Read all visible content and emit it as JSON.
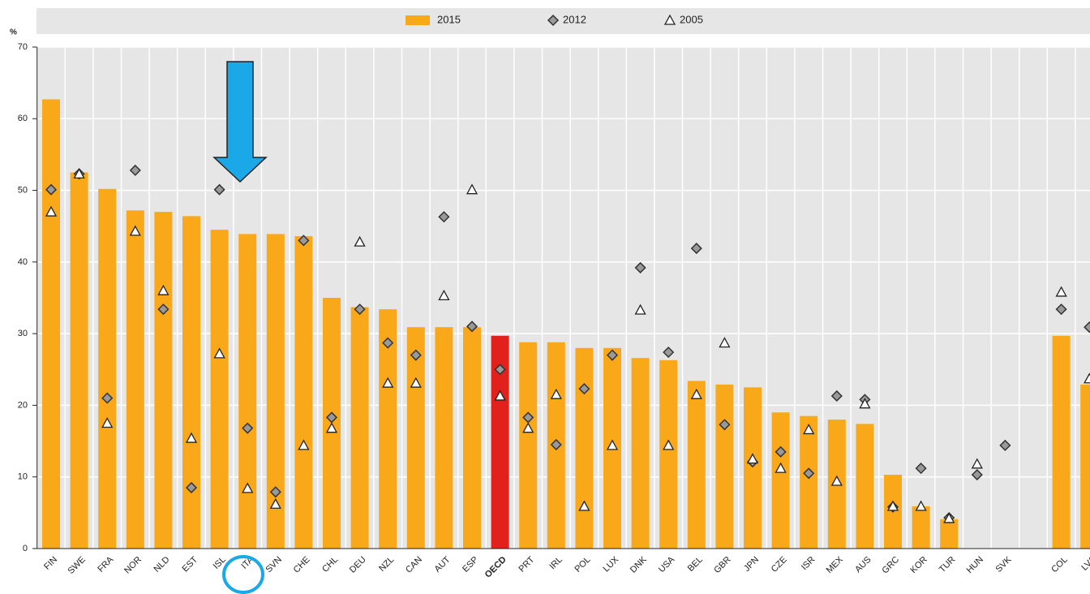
{
  "chart_data": {
    "type": "bar",
    "y_label": "%",
    "categories": [
      "FIN",
      "SWE",
      "FRA",
      "NOR",
      "NLD",
      "EST",
      "ISL",
      "ITA",
      "SVN",
      "CHE",
      "CHL",
      "DEU",
      "NZL",
      "CAN",
      "AUT",
      "ESP",
      "OECD",
      "PRT",
      "IRL",
      "POL",
      "LUX",
      "DNK",
      "USA",
      "BEL",
      "GBR",
      "JPN",
      "CZE",
      "ISR",
      "MEX",
      "AUS",
      "GRC",
      "KOR",
      "TUR",
      "HUN",
      "SVK",
      null,
      "COL",
      "LVA"
    ],
    "series": [
      {
        "name": "2015",
        "marker": "bar",
        "color": "#f9a819",
        "colors": [
          "#f9a819",
          "#f9a819",
          "#f9a819",
          "#f9a819",
          "#f9a819",
          "#f9a819",
          "#f9a819",
          "#f9a819",
          "#f9a819",
          "#f9a819",
          "#f9a819",
          "#f9a819",
          "#f9a819",
          "#f9a819",
          "#f9a819",
          "#f9a819",
          "#e2211c",
          "#f9a819",
          "#f9a819",
          "#f9a819",
          "#f9a819",
          "#f9a819",
          "#f9a819",
          "#f9a819",
          "#f9a819",
          "#f9a819",
          "#f9a819",
          "#f9a819",
          "#f9a819",
          "#f9a819",
          "#f9a819",
          "#f9a819",
          "#f9a819",
          "#f9a819",
          "#f9a819",
          "#f9a819",
          "#f9a819",
          "#f9a819"
        ],
        "values": [
          62.7,
          52.5,
          50.2,
          47.2,
          47.0,
          46.4,
          44.5,
          43.9,
          43.9,
          43.6,
          35.0,
          33.7,
          33.4,
          30.9,
          30.9,
          30.9,
          29.7,
          28.8,
          28.8,
          28.0,
          28.0,
          26.6,
          26.3,
          23.4,
          22.9,
          22.5,
          19.0,
          18.5,
          18.0,
          17.4,
          10.3,
          5.9,
          4.1,
          null,
          null,
          null,
          29.7,
          22.9
        ]
      },
      {
        "name": "2012",
        "marker": "diamond",
        "color": "#999999",
        "values": [
          50.1,
          52.3,
          21.0,
          52.8,
          33.4,
          8.5,
          50.1,
          16.8,
          7.9,
          43.0,
          18.3,
          33.4,
          28.7,
          27.0,
          46.3,
          31.0,
          25.0,
          18.3,
          14.5,
          22.3,
          27.0,
          39.2,
          27.4,
          41.9,
          17.3,
          12.1,
          13.5,
          10.5,
          21.3,
          20.8,
          5.8,
          11.2,
          4.3,
          10.3,
          14.4,
          null,
          33.4,
          30.9
        ]
      },
      {
        "name": "2005",
        "marker": "triangle",
        "color": "#ffffff",
        "values": [
          47.0,
          52.3,
          17.5,
          44.3,
          36.0,
          15.4,
          27.2,
          8.4,
          6.2,
          14.4,
          16.8,
          42.8,
          23.1,
          23.1,
          35.3,
          50.1,
          21.3,
          16.8,
          21.5,
          5.9,
          14.4,
          33.3,
          14.4,
          21.5,
          28.7,
          12.5,
          11.2,
          16.6,
          9.4,
          20.2,
          5.9,
          5.9,
          4.2,
          11.8,
          null,
          null,
          35.8,
          23.7
        ]
      }
    ],
    "ylim": [
      0,
      70
    ],
    "yticks": [
      0,
      10,
      20,
      30,
      40,
      50,
      60,
      70
    ],
    "grid": true
  }
}
